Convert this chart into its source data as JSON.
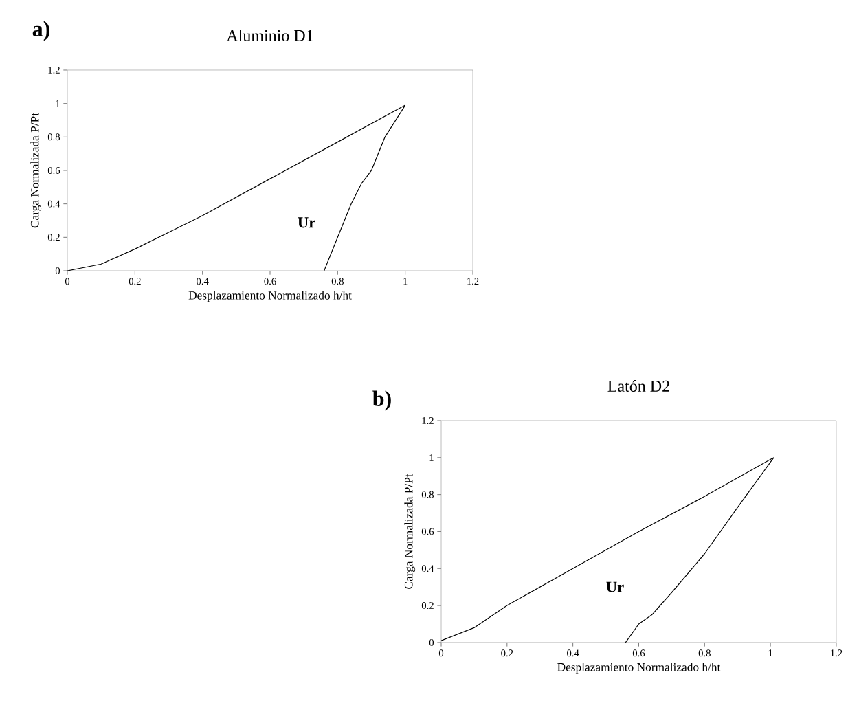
{
  "chart_data": [
    {
      "type": "line",
      "title": "Aluminio D1",
      "xlabel": "Desplazamiento Normalizado h/ht",
      "ylabel": "Carga Normalizada P/Pt",
      "series": [
        {
          "color": "#000000",
          "x": [
            0,
            0.1,
            0.2,
            0.4,
            0.6,
            0.8,
            0.9,
            1.0
          ],
          "values": [
            0,
            0.04,
            0.13,
            0.33,
            0.55,
            0.77,
            0.88,
            0.99
          ]
        },
        {
          "color": "#000000",
          "x": [
            0.76,
            0.8,
            0.84,
            0.87,
            0.9,
            0.94,
            1.0
          ],
          "values": [
            0,
            0.2,
            0.4,
            0.52,
            0.6,
            0.8,
            0.99
          ]
        }
      ],
      "xlim": [
        0,
        1.2
      ],
      "ylim": [
        0,
        1.2
      ],
      "xticks": [
        0,
        0.2,
        0.4,
        0.6,
        0.8,
        1,
        1.2
      ],
      "yticks": [
        0,
        0.2,
        0.4,
        0.6,
        0.8,
        1,
        1.2
      ],
      "marker": "none",
      "line_style": "solid",
      "annotations": [
        "a)",
        "Ur"
      ]
    },
    {
      "type": "line",
      "title": "Latón D2",
      "xlabel": "Desplazamiento Normalizado h/ht",
      "ylabel": "Carga Normalizada P/Pt",
      "series": [
        {
          "color": "#000000",
          "x": [
            0,
            0.1,
            0.2,
            0.4,
            0.6,
            0.8,
            1.01
          ],
          "values": [
            0.01,
            0.08,
            0.2,
            0.4,
            0.6,
            0.79,
            1.0
          ]
        },
        {
          "color": "#000000",
          "x": [
            0.56,
            0.6,
            0.64,
            0.7,
            0.8,
            0.9,
            1.01
          ],
          "values": [
            0,
            0.1,
            0.15,
            0.27,
            0.48,
            0.73,
            1.0
          ]
        }
      ],
      "xlim": [
        0,
        1.2
      ],
      "ylim": [
        0,
        1.2
      ],
      "xticks": [
        0,
        0.2,
        0.4,
        0.6,
        0.8,
        1,
        1.2
      ],
      "yticks": [
        0,
        0.2,
        0.4,
        0.6,
        0.8,
        1,
        1.2
      ],
      "marker": "none",
      "line_style": "solid",
      "annotations": [
        "b)",
        "Ur"
      ]
    }
  ]
}
